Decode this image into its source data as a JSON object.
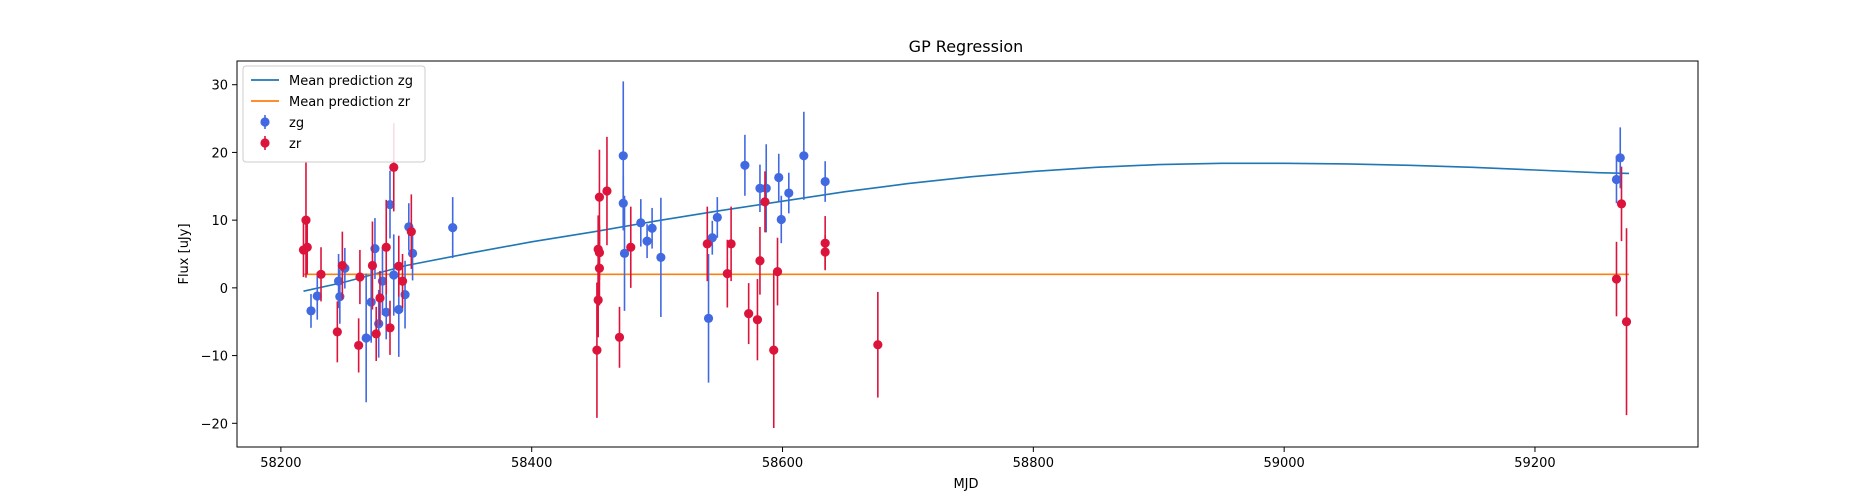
{
  "chart_data": {
    "type": "scatter",
    "title": "GP Regression",
    "xlabel": "MJD",
    "ylabel": "Flux [uJy]",
    "xlim": [
      58165,
      59330
    ],
    "ylim": [
      -23.5,
      33.5
    ],
    "xticks": [
      58200,
      58400,
      58600,
      58800,
      59000,
      59200
    ],
    "yticks": [
      -20,
      -10,
      0,
      10,
      20,
      30
    ],
    "grid": false,
    "legend_position": "upper-left",
    "legend": [
      {
        "label": "Mean prediction zg",
        "kind": "line",
        "color": "#1f77b4"
      },
      {
        "label": "Mean prediction zr",
        "kind": "line",
        "color": "#ff7f0e"
      },
      {
        "label": "zg",
        "kind": "errorbar",
        "color": "#4169e1"
      },
      {
        "label": "zr",
        "kind": "errorbar",
        "color": "#dc143c"
      }
    ],
    "lines": [
      {
        "name": "Mean prediction zg",
        "color": "#1f77b4",
        "x": [
          58218,
          58250,
          58300,
          58350,
          58400,
          58450,
          58500,
          58550,
          58600,
          58650,
          58700,
          58750,
          58800,
          58850,
          58900,
          58950,
          59000,
          59050,
          59100,
          59150,
          59200,
          59250,
          59275
        ],
        "y": [
          -0.5,
          0.8,
          3.3,
          5.1,
          6.8,
          8.3,
          9.9,
          11.4,
          12.8,
          14.2,
          15.4,
          16.4,
          17.2,
          17.8,
          18.2,
          18.4,
          18.4,
          18.3,
          18.1,
          17.8,
          17.4,
          17.0,
          16.9
        ]
      },
      {
        "name": "Mean prediction zr",
        "color": "#ff7f0e",
        "x": [
          58218,
          59275
        ],
        "y": [
          2.0,
          2.0
        ]
      }
    ],
    "series": [
      {
        "name": "zg",
        "color": "#4169e1",
        "points": [
          {
            "x": 58224,
            "y": -3.4,
            "err": 2.5
          },
          {
            "x": 58229,
            "y": -1.2,
            "err": 3.5
          },
          {
            "x": 58246,
            "y": 1.0,
            "err": 4.0
          },
          {
            "x": 58247,
            "y": -1.3,
            "err": 4.0
          },
          {
            "x": 58251,
            "y": 2.9,
            "err": 3.0
          },
          {
            "x": 58268,
            "y": -7.4,
            "err": 9.5
          },
          {
            "x": 58272,
            "y": -2.1,
            "err": 6.0
          },
          {
            "x": 58275,
            "y": 5.8,
            "err": 4.5
          },
          {
            "x": 58278,
            "y": -5.3,
            "err": 5.0
          },
          {
            "x": 58281,
            "y": 1.0,
            "err": 5.0
          },
          {
            "x": 58284,
            "y": -3.6,
            "err": 4.0
          },
          {
            "x": 58287,
            "y": 12.3,
            "err": 5.0
          },
          {
            "x": 58290,
            "y": 1.9,
            "err": 6.0
          },
          {
            "x": 58294,
            "y": -3.2,
            "err": 7.0
          },
          {
            "x": 58299,
            "y": -1.0,
            "err": 5.0
          },
          {
            "x": 58302,
            "y": 9.0,
            "err": 3.5
          },
          {
            "x": 58305,
            "y": 5.1,
            "err": 4.0
          },
          {
            "x": 58337,
            "y": 8.9,
            "err": 4.5
          },
          {
            "x": 58473,
            "y": 19.5,
            "err": 11.0
          },
          {
            "x": 58474,
            "y": 5.1,
            "err": 8.5
          },
          {
            "x": 58473,
            "y": 12.5,
            "err": 4.0
          },
          {
            "x": 58487,
            "y": 9.6,
            "err": 3.5
          },
          {
            "x": 58492,
            "y": 6.9,
            "err": 2.5
          },
          {
            "x": 58496,
            "y": 8.8,
            "err": 3.0
          },
          {
            "x": 58503,
            "y": 4.5,
            "err": 8.8
          },
          {
            "x": 58541,
            "y": -4.5,
            "err": 9.5
          },
          {
            "x": 58544,
            "y": 7.4,
            "err": 2.5
          },
          {
            "x": 58548,
            "y": 10.4,
            "err": 3.0
          },
          {
            "x": 58570,
            "y": 18.1,
            "err": 4.5
          },
          {
            "x": 58582,
            "y": 14.7,
            "err": 3.5
          },
          {
            "x": 58587,
            "y": 14.7,
            "err": 6.5
          },
          {
            "x": 58597,
            "y": 16.3,
            "err": 3.5
          },
          {
            "x": 58599,
            "y": 10.1,
            "err": 3.5
          },
          {
            "x": 58605,
            "y": 14.0,
            "err": 3.0
          },
          {
            "x": 58617,
            "y": 19.5,
            "err": 6.5
          },
          {
            "x": 58634,
            "y": 15.7,
            "err": 3.0
          },
          {
            "x": 59265,
            "y": 16.0,
            "err": 3.5
          },
          {
            "x": 59268,
            "y": 19.2,
            "err": 4.5
          }
        ]
      },
      {
        "name": "zr",
        "color": "#dc143c",
        "points": [
          {
            "x": 58218,
            "y": 5.6,
            "err": 4.0
          },
          {
            "x": 58220,
            "y": 10.0,
            "err": 8.5
          },
          {
            "x": 58221,
            "y": 6.0,
            "err": 4.0
          },
          {
            "x": 58232,
            "y": 2.0,
            "err": 4.0
          },
          {
            "x": 58245,
            "y": -6.5,
            "err": 4.5
          },
          {
            "x": 58249,
            "y": 3.3,
            "err": 5.0
          },
          {
            "x": 58262,
            "y": -8.5,
            "err": 4.0
          },
          {
            "x": 58263,
            "y": 1.6,
            "err": 4.0
          },
          {
            "x": 58273,
            "y": 3.3,
            "err": 6.5
          },
          {
            "x": 58276,
            "y": -6.8,
            "err": 4.0
          },
          {
            "x": 58279,
            "y": -1.5,
            "err": 4.0
          },
          {
            "x": 58284,
            "y": 6.0,
            "err": 7.0
          },
          {
            "x": 58287,
            "y": -5.9,
            "err": 4.0
          },
          {
            "x": 58290,
            "y": 17.8,
            "err": 6.5
          },
          {
            "x": 58294,
            "y": 3.2,
            "err": 4.5
          },
          {
            "x": 58297,
            "y": 1.0,
            "err": 4.0
          },
          {
            "x": 58304,
            "y": 8.3,
            "err": 5.5
          },
          {
            "x": 58452,
            "y": -9.2,
            "err": 10.0
          },
          {
            "x": 58453,
            "y": -1.8,
            "err": 5.5
          },
          {
            "x": 58454,
            "y": 13.4,
            "err": 7.0
          },
          {
            "x": 58453,
            "y": 5.7,
            "err": 5.0
          },
          {
            "x": 58454,
            "y": 5.2,
            "err": 4.0
          },
          {
            "x": 58454,
            "y": 2.9,
            "err": 5.5
          },
          {
            "x": 58460,
            "y": 14.3,
            "err": 8.0
          },
          {
            "x": 58470,
            "y": -7.3,
            "err": 4.5
          },
          {
            "x": 58479,
            "y": 6.0,
            "err": 6.0
          },
          {
            "x": 58540,
            "y": 6.5,
            "err": 5.5
          },
          {
            "x": 58556,
            "y": 2.1,
            "err": 5.0
          },
          {
            "x": 58559,
            "y": 6.5,
            "err": 5.5
          },
          {
            "x": 58573,
            "y": -3.8,
            "err": 4.5
          },
          {
            "x": 58580,
            "y": -4.7,
            "err": 6.0
          },
          {
            "x": 58582,
            "y": 4.0,
            "err": 5.0
          },
          {
            "x": 58586,
            "y": 12.7,
            "err": 4.5
          },
          {
            "x": 58593,
            "y": -9.2,
            "err": 11.5
          },
          {
            "x": 58596,
            "y": 2.4,
            "err": 5.0
          },
          {
            "x": 58634,
            "y": 6.6,
            "err": 4.0
          },
          {
            "x": 58634,
            "y": 5.3,
            "err": 2.5
          },
          {
            "x": 58676,
            "y": -8.4,
            "err": 7.8
          },
          {
            "x": 59265,
            "y": 1.3,
            "err": 5.5
          },
          {
            "x": 59269,
            "y": 12.4,
            "err": 5.5
          },
          {
            "x": 59273,
            "y": -5.0,
            "err": 13.8
          }
        ]
      }
    ]
  }
}
